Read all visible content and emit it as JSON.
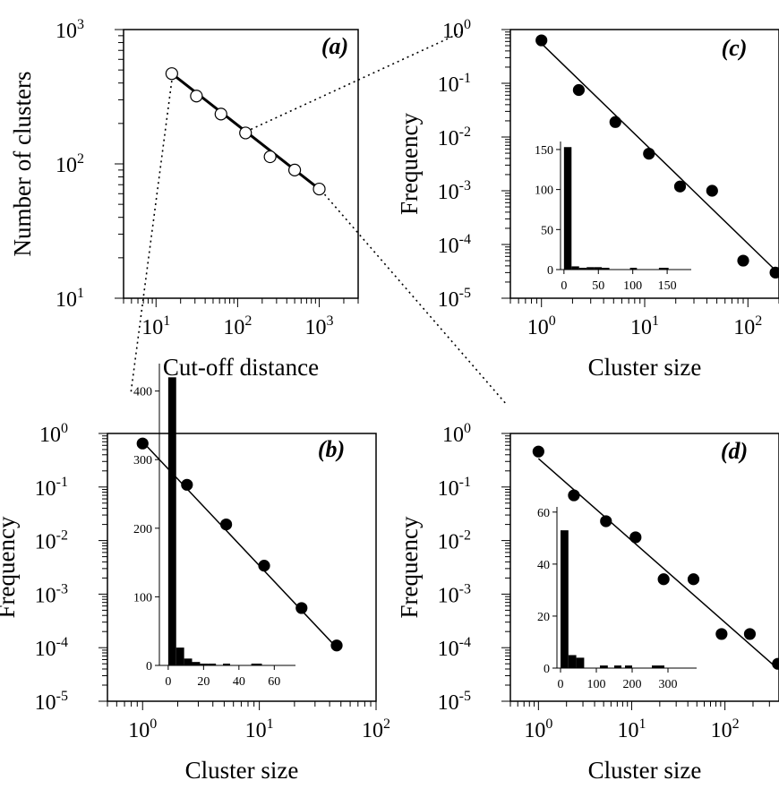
{
  "figure": {
    "connector_color": "#000000",
    "marker_color": "#000000"
  },
  "chart_data": [
    {
      "id": "a",
      "type": "scatter",
      "panel_label": "(a)",
      "xlabel": "Cut-off distance",
      "ylabel": "Number of clusters",
      "xscale": "log",
      "yscale": "log",
      "xlim": [
        4,
        3000
      ],
      "ylim": [
        10,
        1000
      ],
      "xticks": [
        {
          "base": "10",
          "exp": "1",
          "value": 10
        },
        {
          "base": "10",
          "exp": "2",
          "value": 100
        },
        {
          "base": "10",
          "exp": "3",
          "value": 1000
        }
      ],
      "yticks": [
        {
          "base": "10",
          "exp": "1",
          "value": 10
        },
        {
          "base": "10",
          "exp": "2",
          "value": 100
        },
        {
          "base": "10",
          "exp": "3",
          "value": 1000
        }
      ],
      "marker": "open-circle",
      "series": [
        {
          "x": [
            15.6,
            31.25,
            62.5,
            125,
            250,
            500,
            1000
          ],
          "y": [
            470,
            320,
            235,
            170,
            113,
            90,
            65
          ]
        }
      ],
      "fit": {
        "x": [
          15.6,
          1000
        ],
        "y": [
          470,
          65
        ]
      },
      "grid": false,
      "legend": "none"
    },
    {
      "id": "b",
      "type": "scatter",
      "panel_label": "(b)",
      "xlabel": "Cluster size",
      "ylabel": "Frequency",
      "xscale": "log",
      "yscale": "log",
      "xlim": [
        0.5,
        100
      ],
      "ylim": [
        1e-05,
        1
      ],
      "xticks": [
        {
          "base": "10",
          "exp": "0",
          "value": 1
        },
        {
          "base": "10",
          "exp": "1",
          "value": 10
        },
        {
          "base": "10",
          "exp": "2",
          "value": 100
        }
      ],
      "yticks": [
        {
          "base": "10",
          "exp": "0",
          "value": 1
        },
        {
          "base": "10",
          "exp": "-1",
          "value": 0.1
        },
        {
          "base": "10",
          "exp": "-2",
          "value": 0.01
        },
        {
          "base": "10",
          "exp": "-3",
          "value": 0.001
        },
        {
          "base": "10",
          "exp": "-4",
          "value": 0.0001
        },
        {
          "base": "10",
          "exp": "-5",
          "value": 1e-05
        }
      ],
      "marker": "filled-circle",
      "series": [
        {
          "x": [
            1,
            2.4,
            5.2,
            11,
            23,
            46
          ],
          "y": [
            0.65,
            0.11,
            0.02,
            0.0034,
            0.00055,
            0.00011
          ]
        }
      ],
      "fit": {
        "x": [
          1,
          46
        ],
        "y": [
          0.7,
          0.0001
        ]
      },
      "grid": false,
      "legend": "none",
      "inset": {
        "type": "bar",
        "xlim": [
          -5,
          72
        ],
        "ylim": [
          0,
          440
        ],
        "xticks": [
          {
            "label": "0",
            "value": 0
          },
          {
            "label": "20",
            "value": 20
          },
          {
            "label": "40",
            "value": 40
          },
          {
            "label": "60",
            "value": 60
          }
        ],
        "yticks": [
          {
            "label": "0",
            "value": 0
          },
          {
            "label": "100",
            "value": 100
          },
          {
            "label": "200",
            "value": 200
          },
          {
            "label": "300",
            "value": 300
          },
          {
            "label": "400",
            "value": 400
          }
        ],
        "bars": [
          {
            "start": 0,
            "end": 4.5,
            "value": 420
          },
          {
            "start": 4.5,
            "end": 9,
            "value": 26
          },
          {
            "start": 9,
            "end": 13.5,
            "value": 10
          },
          {
            "start": 13.5,
            "end": 18,
            "value": 5
          },
          {
            "start": 18,
            "end": 22.5,
            "value": 2
          },
          {
            "start": 22.5,
            "end": 27,
            "value": 2
          },
          {
            "start": 31,
            "end": 35,
            "value": 1
          },
          {
            "start": 47,
            "end": 53,
            "value": 1
          }
        ]
      }
    },
    {
      "id": "c",
      "type": "scatter",
      "panel_label": "(c)",
      "xlabel": "Cluster size",
      "ylabel": "Frequency",
      "xscale": "log",
      "yscale": "log",
      "xlim": [
        0.5,
        200
      ],
      "ylim": [
        1e-05,
        1
      ],
      "xticks": [
        {
          "base": "10",
          "exp": "0",
          "value": 1
        },
        {
          "base": "10",
          "exp": "1",
          "value": 10
        },
        {
          "base": "10",
          "exp": "2",
          "value": 100
        }
      ],
      "yticks": [
        {
          "base": "10",
          "exp": "0",
          "value": 1
        },
        {
          "base": "10",
          "exp": "-1",
          "value": 0.1
        },
        {
          "base": "10",
          "exp": "-2",
          "value": 0.01
        },
        {
          "base": "10",
          "exp": "-3",
          "value": 0.001
        },
        {
          "base": "10",
          "exp": "-4",
          "value": 0.0001
        },
        {
          "base": "10",
          "exp": "-5",
          "value": 1e-05
        }
      ],
      "marker": "filled-circle",
      "series": [
        {
          "x": [
            1,
            2.3,
            5.2,
            11,
            22,
            45,
            90,
            185
          ],
          "y": [
            0.63,
            0.075,
            0.019,
            0.0049,
            0.0012,
            0.001,
            5e-05,
            3e-05
          ]
        }
      ],
      "fit": {
        "x": [
          1,
          185
        ],
        "y": [
          0.55,
          3.3e-05
        ]
      },
      "grid": false,
      "legend": "none",
      "inset": {
        "type": "bar",
        "xlim": [
          -5,
          185
        ],
        "ylim": [
          0,
          160
        ],
        "xticks": [
          {
            "label": "0",
            "value": 0
          },
          {
            "label": "50",
            "value": 50
          },
          {
            "label": "100",
            "value": 100
          },
          {
            "label": "150",
            "value": 150
          }
        ],
        "yticks": [
          {
            "label": "0",
            "value": 0
          },
          {
            "label": "50",
            "value": 50
          },
          {
            "label": "100",
            "value": 100
          },
          {
            "label": "150",
            "value": 150
          }
        ],
        "bars": [
          {
            "start": 0,
            "end": 11,
            "value": 153
          },
          {
            "start": 11,
            "end": 22,
            "value": 4
          },
          {
            "start": 22,
            "end": 33,
            "value": 2
          },
          {
            "start": 33,
            "end": 44,
            "value": 3
          },
          {
            "start": 44,
            "end": 55,
            "value": 3
          },
          {
            "start": 55,
            "end": 66,
            "value": 1
          },
          {
            "start": 96,
            "end": 106,
            "value": 1
          },
          {
            "start": 138,
            "end": 152,
            "value": 1
          }
        ]
      }
    },
    {
      "id": "d",
      "type": "scatter",
      "panel_label": "(d)",
      "xlabel": "Cluster size",
      "ylabel": "Frequency",
      "xscale": "log",
      "yscale": "log",
      "xlim": [
        0.5,
        380
      ],
      "ylim": [
        1e-05,
        1
      ],
      "xticks": [
        {
          "base": "10",
          "exp": "0",
          "value": 1
        },
        {
          "base": "10",
          "exp": "1",
          "value": 10
        },
        {
          "base": "10",
          "exp": "2",
          "value": 100
        }
      ],
      "yticks": [
        {
          "base": "10",
          "exp": "0",
          "value": 1
        },
        {
          "base": "10",
          "exp": "-1",
          "value": 0.1
        },
        {
          "base": "10",
          "exp": "-2",
          "value": 0.01
        },
        {
          "base": "10",
          "exp": "-3",
          "value": 0.001
        },
        {
          "base": "10",
          "exp": "-4",
          "value": 0.0001
        },
        {
          "base": "10",
          "exp": "-5",
          "value": 1e-05
        }
      ],
      "marker": "filled-circle",
      "series": [
        {
          "x": [
            1,
            2.4,
            5.3,
            11,
            22,
            46,
            92,
            185,
            370
          ],
          "y": [
            0.46,
            0.07,
            0.023,
            0.0115,
            0.0019,
            0.0019,
            0.00018,
            0.00018,
            5e-05
          ]
        }
      ],
      "fit": {
        "x": [
          1,
          370
        ],
        "y": [
          0.34,
          4e-05
        ]
      },
      "grid": false,
      "legend": "none",
      "inset": {
        "type": "bar",
        "xlim": [
          -10,
          380
        ],
        "ylim": [
          0,
          62
        ],
        "xticks": [
          {
            "label": "0",
            "value": 0
          },
          {
            "label": "100",
            "value": 100
          },
          {
            "label": "200",
            "value": 200
          },
          {
            "label": "300",
            "value": 300
          }
        ],
        "yticks": [
          {
            "label": "0",
            "value": 0
          },
          {
            "label": "20",
            "value": 20
          },
          {
            "label": "40",
            "value": 40
          },
          {
            "label": "60",
            "value": 60
          }
        ],
        "bars": [
          {
            "start": 0,
            "end": 22,
            "value": 53
          },
          {
            "start": 22,
            "end": 44,
            "value": 5
          },
          {
            "start": 44,
            "end": 66,
            "value": 4
          },
          {
            "start": 110,
            "end": 132,
            "value": 1
          },
          {
            "start": 150,
            "end": 170,
            "value": 1
          },
          {
            "start": 180,
            "end": 200,
            "value": 1
          },
          {
            "start": 255,
            "end": 290,
            "value": 1
          }
        ]
      }
    }
  ]
}
